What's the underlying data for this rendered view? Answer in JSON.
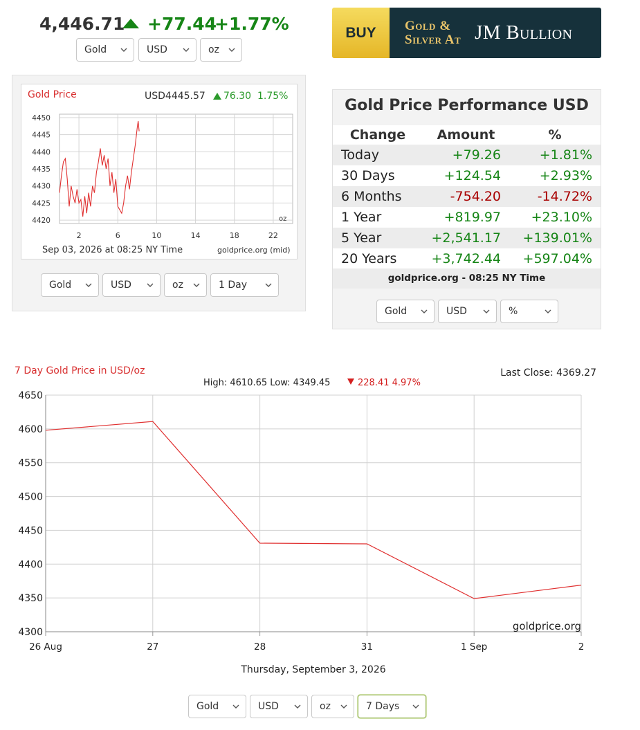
{
  "header": {
    "price": "4,446.71",
    "change": "+77.44",
    "change_pct": "+1.77%",
    "up_color": "#168516"
  },
  "header_selects": {
    "metal": "Gold",
    "currency": "USD",
    "unit": "oz"
  },
  "banner": {
    "buy_label": "BUY",
    "line1": "Gold &",
    "line2": "Silver At",
    "brand": "JM Bullion"
  },
  "small_chart": {
    "title": "Gold Price",
    "price_label": "USD4445.57",
    "change_label": "76.30",
    "change_pct_label": "1.75%",
    "timestamp": "Sep 03, 2026 at 08:25 NY Time",
    "source": "goldprice.org (mid)",
    "unit_label": "oz",
    "selects": {
      "metal": "Gold",
      "currency": "USD",
      "unit": "oz",
      "range": "1 Day"
    }
  },
  "performance": {
    "title": "Gold Price Performance USD",
    "headers": [
      "Change",
      "Amount",
      "%"
    ],
    "rows": [
      {
        "label": "Today",
        "amount": "+79.26",
        "pct": "+1.81%",
        "direction": "up"
      },
      {
        "label": "30 Days",
        "amount": "+124.54",
        "pct": "+2.93%",
        "direction": "up"
      },
      {
        "label": "6 Months",
        "amount": "-754.20",
        "pct": "-14.72%",
        "direction": "down"
      },
      {
        "label": "1 Year",
        "amount": "+819.97",
        "pct": "+23.10%",
        "direction": "up"
      },
      {
        "label": "5 Year",
        "amount": "+2,541.17",
        "pct": "+139.01%",
        "direction": "up"
      },
      {
        "label": "20 Years",
        "amount": "+3,742.44",
        "pct": "+597.04%",
        "direction": "up"
      }
    ],
    "footer": "goldprice.org - 08:25 NY Time",
    "selects": {
      "metal": "Gold",
      "currency": "USD",
      "mode": "%"
    }
  },
  "big_chart": {
    "title": "7 Day Gold Price in USD/oz",
    "last_close": "Last Close: 4369.27",
    "stats": "High: 4610.65 Low: 4349.45",
    "stats_change": "228.41 4.97%",
    "watermark": "goldprice.org",
    "date_label": "Thursday, September 3, 2026",
    "selects": {
      "metal": "Gold",
      "currency": "USD",
      "unit": "oz",
      "range": "7 Days"
    }
  },
  "chart_data": [
    {
      "type": "line",
      "title": "Gold Price",
      "x_ticks": [
        2,
        6,
        10,
        14,
        18,
        22
      ],
      "y_ticks": [
        4420,
        4425,
        4430,
        4435,
        4440,
        4445,
        4450
      ],
      "xlim": [
        0,
        24
      ],
      "ylim": [
        4419,
        4451
      ],
      "x": [
        0.0,
        0.2,
        0.4,
        0.6,
        0.8,
        1.0,
        1.2,
        1.4,
        1.6,
        1.8,
        2.0,
        2.2,
        2.4,
        2.6,
        2.8,
        3.0,
        3.2,
        3.4,
        3.6,
        3.8,
        4.0,
        4.2,
        4.4,
        4.6,
        4.8,
        5.0,
        5.2,
        5.4,
        5.6,
        5.8,
        6.0,
        6.2,
        6.4,
        6.6,
        6.8,
        7.0,
        7.2,
        7.4,
        7.6,
        7.8,
        8.0,
        8.1,
        8.2
      ],
      "y": [
        4428,
        4433,
        4437,
        4438,
        4432,
        4424,
        4430,
        4427,
        4425,
        4429,
        4425,
        4426,
        4421,
        4427,
        4422,
        4428,
        4424,
        4430,
        4428,
        4434,
        4437,
        4441,
        4436,
        4439,
        4435,
        4438,
        4430,
        4434,
        4428,
        4432,
        4424,
        4423,
        4422,
        4425,
        4430,
        4433,
        4429,
        4434,
        4438,
        4442,
        4447,
        4449,
        4446
      ],
      "grid": true,
      "line_color": "#e03030"
    },
    {
      "type": "line",
      "title": "7 Day Gold Price in USD/oz",
      "categories": [
        "26 Aug",
        "27",
        "28",
        "31",
        "1 Sep",
        "2"
      ],
      "values": [
        4598,
        4611,
        4431,
        4430,
        4349,
        4369
      ],
      "y_ticks": [
        4300,
        4350,
        4400,
        4450,
        4500,
        4550,
        4600,
        4650
      ],
      "ylim": [
        4300,
        4650
      ],
      "grid": true,
      "line_color": "#e03030"
    }
  ]
}
